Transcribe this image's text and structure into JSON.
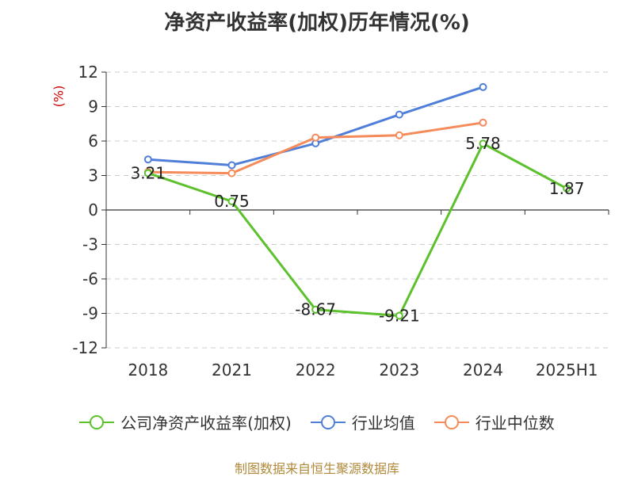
{
  "chart_data": {
    "type": "line",
    "title": "净资产收益率(加权)历年情况(%)",
    "ylabel": "(%)",
    "xlabel": "",
    "categories": [
      "2018",
      "2021",
      "2022",
      "2023",
      "2024",
      "2025H1"
    ],
    "ylim": [
      -12,
      12
    ],
    "yticks": [
      12,
      9,
      6,
      3,
      0,
      -3,
      -6,
      -9,
      -12
    ],
    "grid": true,
    "legend_position": "bottom",
    "series": [
      {
        "name": "公司净资产收益率(加权)",
        "color": "#5cc12d",
        "values": [
          3.21,
          0.75,
          -8.67,
          -9.21,
          5.78,
          1.87
        ],
        "labels": [
          "3.21",
          "0.75",
          "-8.67",
          "-9.21",
          "5.78",
          "1.87"
        ]
      },
      {
        "name": "行业均值",
        "color": "#4f7fd8",
        "values": [
          4.4,
          3.9,
          5.8,
          8.3,
          10.7,
          null
        ]
      },
      {
        "name": "行业中位数",
        "color": "#f58b5a",
        "values": [
          3.3,
          3.2,
          6.3,
          6.5,
          7.6,
          null
        ]
      }
    ]
  },
  "footer": {
    "source": "制图数据来自恒生聚源数据库"
  }
}
